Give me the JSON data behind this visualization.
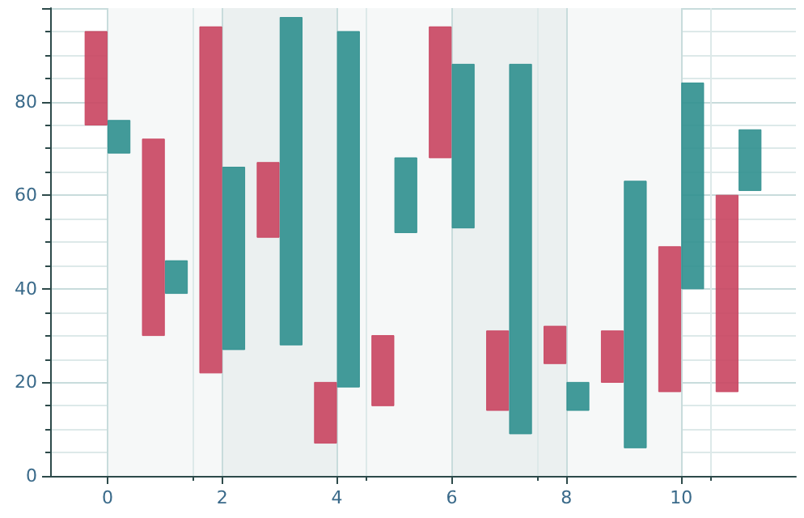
{
  "chart_data": {
    "type": "bar",
    "x": [
      0,
      1,
      2,
      3,
      4,
      5,
      6,
      7,
      8,
      9,
      10,
      11
    ],
    "series": [
      {
        "color": "#c9445f",
        "base": [
          75,
          30,
          22,
          51,
          7,
          15,
          68,
          14,
          24,
          20,
          18,
          18
        ],
        "values": [
          20,
          42,
          74,
          16,
          13,
          15,
          28,
          17,
          8,
          11,
          31,
          42
        ]
      },
      {
        "color": "#2f8f8e",
        "base": [
          69,
          39,
          27,
          28,
          19,
          52,
          53,
          9,
          14,
          6,
          40,
          61
        ],
        "values": [
          7,
          7,
          39,
          70,
          76,
          16,
          35,
          79,
          6,
          57,
          44,
          13
        ]
      }
    ],
    "xlim": [
      -1,
      12
    ],
    "xticks": [
      0,
      2,
      4,
      6,
      8,
      10
    ],
    "ylim": [
      0,
      100
    ],
    "yticks": [
      0,
      20,
      40,
      60,
      80,
      {
        "value": 100,
        "label": null
      }
    ],
    "grid": true
  }
}
